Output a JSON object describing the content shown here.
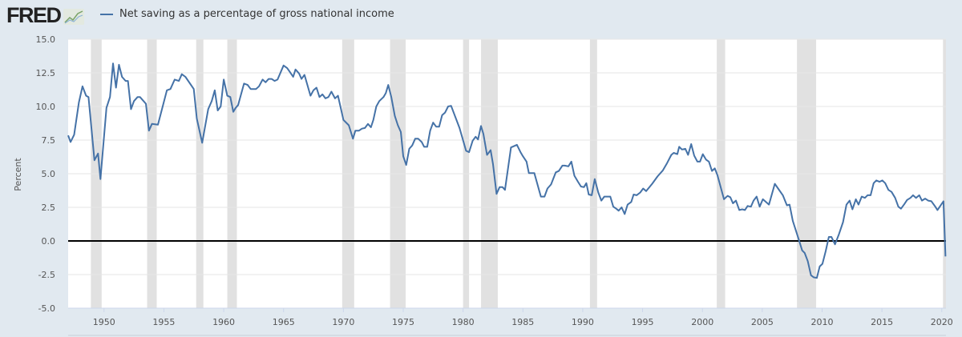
{
  "logo": {
    "text": "FRED"
  },
  "legend": {
    "label": "Net saving as a percentage of gross national income",
    "color": "#4572a7"
  },
  "chart_data": {
    "type": "line",
    "title": "Net saving as a percentage of gross national income",
    "xlabel": "",
    "ylabel": "Percent",
    "xlim": [
      1947,
      2020.35
    ],
    "ylim": [
      -5,
      15
    ],
    "grid": true,
    "legend_position": "top-left",
    "yticks": [
      "-5.0",
      "-2.5",
      "0.0",
      "2.5",
      "5.0",
      "7.5",
      "10.0",
      "12.5",
      "15.0"
    ],
    "xticks": [
      "1950",
      "1955",
      "1960",
      "1965",
      "1970",
      "1975",
      "1980",
      "1985",
      "1990",
      "1995",
      "2000",
      "2005",
      "2010",
      "2015",
      "2020"
    ],
    "recessions": [
      [
        1948.9,
        1949.8
      ],
      [
        1953.6,
        1954.4
      ],
      [
        1957.7,
        1958.3
      ],
      [
        1960.3,
        1961.1
      ],
      [
        1969.9,
        1970.9
      ],
      [
        1973.9,
        1975.2
      ],
      [
        1980.0,
        1980.5
      ],
      [
        1981.5,
        1982.9
      ],
      [
        1990.6,
        1991.2
      ],
      [
        2001.2,
        2001.9
      ],
      [
        2007.9,
        2009.5
      ],
      [
        2020.1,
        2020.35
      ]
    ],
    "series": [
      {
        "name": "Net saving as a percentage of gross national income",
        "points": [
          [
            1947.0,
            7.85
          ],
          [
            1947.2,
            7.36
          ],
          [
            1947.5,
            7.9
          ],
          [
            1947.9,
            10.3
          ],
          [
            1948.2,
            11.5
          ],
          [
            1948.5,
            10.8
          ],
          [
            1948.7,
            10.7
          ],
          [
            1949.2,
            6.0
          ],
          [
            1949.5,
            6.5
          ],
          [
            1949.7,
            4.6
          ],
          [
            1950.2,
            9.9
          ],
          [
            1950.5,
            10.7
          ],
          [
            1950.75,
            13.2
          ],
          [
            1951.0,
            11.4
          ],
          [
            1951.25,
            13.1
          ],
          [
            1951.5,
            12.2
          ],
          [
            1951.8,
            11.9
          ],
          [
            1952.0,
            11.9
          ],
          [
            1952.25,
            9.8
          ],
          [
            1952.5,
            10.4
          ],
          [
            1952.8,
            10.7
          ],
          [
            1953.0,
            10.7
          ],
          [
            1953.5,
            10.2
          ],
          [
            1953.75,
            8.2
          ],
          [
            1954.0,
            8.7
          ],
          [
            1954.5,
            8.65
          ],
          [
            1955.25,
            11.2
          ],
          [
            1955.55,
            11.3
          ],
          [
            1955.9,
            12.0
          ],
          [
            1956.25,
            11.9
          ],
          [
            1956.5,
            12.4
          ],
          [
            1956.8,
            12.2
          ],
          [
            1957.5,
            11.3
          ],
          [
            1957.75,
            9.1
          ],
          [
            1958.2,
            7.3
          ],
          [
            1958.7,
            9.8
          ],
          [
            1959.0,
            10.4
          ],
          [
            1959.25,
            11.2
          ],
          [
            1959.5,
            9.7
          ],
          [
            1959.75,
            10.0
          ],
          [
            1960.0,
            12.0
          ],
          [
            1960.3,
            10.8
          ],
          [
            1960.55,
            10.7
          ],
          [
            1960.8,
            9.6
          ],
          [
            1961.0,
            9.9
          ],
          [
            1961.2,
            10.1
          ],
          [
            1961.7,
            11.7
          ],
          [
            1962.0,
            11.6
          ],
          [
            1962.25,
            11.3
          ],
          [
            1962.45,
            11.3
          ],
          [
            1962.7,
            11.3
          ],
          [
            1962.95,
            11.5
          ],
          [
            1963.25,
            12.0
          ],
          [
            1963.5,
            11.8
          ],
          [
            1963.75,
            12.05
          ],
          [
            1964.0,
            12.05
          ],
          [
            1964.25,
            11.9
          ],
          [
            1964.5,
            12.0
          ],
          [
            1965.0,
            13.05
          ],
          [
            1965.3,
            12.85
          ],
          [
            1965.5,
            12.6
          ],
          [
            1965.8,
            12.2
          ],
          [
            1966.0,
            12.75
          ],
          [
            1966.3,
            12.45
          ],
          [
            1966.5,
            12.05
          ],
          [
            1966.75,
            12.35
          ],
          [
            1967.25,
            10.8
          ],
          [
            1967.5,
            11.2
          ],
          [
            1967.75,
            11.4
          ],
          [
            1968.0,
            10.7
          ],
          [
            1968.25,
            10.9
          ],
          [
            1968.5,
            10.6
          ],
          [
            1968.75,
            10.7
          ],
          [
            1969.0,
            11.1
          ],
          [
            1969.3,
            10.6
          ],
          [
            1969.55,
            10.8
          ],
          [
            1970.0,
            9.0
          ],
          [
            1970.45,
            8.6
          ],
          [
            1970.8,
            7.6
          ],
          [
            1971.0,
            8.2
          ],
          [
            1971.3,
            8.2
          ],
          [
            1971.55,
            8.35
          ],
          [
            1971.8,
            8.4
          ],
          [
            1972.05,
            8.7
          ],
          [
            1972.3,
            8.45
          ],
          [
            1972.5,
            9.0
          ],
          [
            1972.75,
            10.0
          ],
          [
            1973.0,
            10.4
          ],
          [
            1973.35,
            10.7
          ],
          [
            1973.55,
            11.0
          ],
          [
            1973.75,
            11.6
          ],
          [
            1974.0,
            10.7
          ],
          [
            1974.3,
            9.3
          ],
          [
            1974.55,
            8.6
          ],
          [
            1974.8,
            8.1
          ],
          [
            1975.0,
            6.3
          ],
          [
            1975.25,
            5.65
          ],
          [
            1975.5,
            6.85
          ],
          [
            1975.75,
            7.1
          ],
          [
            1976.0,
            7.6
          ],
          [
            1976.25,
            7.6
          ],
          [
            1976.55,
            7.35
          ],
          [
            1976.75,
            7.0
          ],
          [
            1977.0,
            7.0
          ],
          [
            1977.25,
            8.2
          ],
          [
            1977.5,
            8.8
          ],
          [
            1977.75,
            8.5
          ],
          [
            1978.0,
            8.5
          ],
          [
            1978.25,
            9.35
          ],
          [
            1978.5,
            9.55
          ],
          [
            1978.75,
            10.0
          ],
          [
            1979.0,
            10.05
          ],
          [
            1979.7,
            8.4
          ],
          [
            1980.25,
            6.7
          ],
          [
            1980.5,
            6.6
          ],
          [
            1980.8,
            7.45
          ],
          [
            1981.05,
            7.75
          ],
          [
            1981.25,
            7.55
          ],
          [
            1981.5,
            8.55
          ],
          [
            1981.7,
            7.95
          ],
          [
            1982.0,
            6.4
          ],
          [
            1982.3,
            6.75
          ],
          [
            1982.5,
            5.7
          ],
          [
            1982.8,
            3.5
          ],
          [
            1983.05,
            4.0
          ],
          [
            1983.3,
            4.0
          ],
          [
            1983.5,
            3.8
          ],
          [
            1984.0,
            6.95
          ],
          [
            1984.5,
            7.15
          ],
          [
            1984.8,
            6.6
          ],
          [
            1985.0,
            6.3
          ],
          [
            1985.3,
            5.9
          ],
          [
            1985.5,
            5.05
          ],
          [
            1985.95,
            5.05
          ],
          [
            1986.5,
            3.3
          ],
          [
            1986.8,
            3.3
          ],
          [
            1987.05,
            3.9
          ],
          [
            1987.35,
            4.2
          ],
          [
            1987.75,
            5.1
          ],
          [
            1988.0,
            5.2
          ],
          [
            1988.3,
            5.6
          ],
          [
            1988.5,
            5.6
          ],
          [
            1988.8,
            5.55
          ],
          [
            1989.05,
            5.9
          ],
          [
            1989.3,
            4.85
          ],
          [
            1989.6,
            4.4
          ],
          [
            1989.85,
            4.05
          ],
          [
            1990.1,
            4.0
          ],
          [
            1990.3,
            4.3
          ],
          [
            1990.5,
            3.45
          ],
          [
            1990.75,
            3.4
          ],
          [
            1991.0,
            4.6
          ],
          [
            1991.3,
            3.6
          ],
          [
            1991.55,
            3.0
          ],
          [
            1991.8,
            3.3
          ],
          [
            1992.05,
            3.3
          ],
          [
            1992.3,
            3.3
          ],
          [
            1992.55,
            2.55
          ],
          [
            1992.8,
            2.4
          ],
          [
            1993.0,
            2.25
          ],
          [
            1993.25,
            2.5
          ],
          [
            1993.5,
            2.0
          ],
          [
            1993.75,
            2.7
          ],
          [
            1994.05,
            2.9
          ],
          [
            1994.25,
            3.45
          ],
          [
            1994.5,
            3.4
          ],
          [
            1994.8,
            3.6
          ],
          [
            1995.05,
            3.9
          ],
          [
            1995.3,
            3.7
          ],
          [
            1995.8,
            4.25
          ],
          [
            1996.25,
            4.8
          ],
          [
            1996.7,
            5.25
          ],
          [
            1997.05,
            5.8
          ],
          [
            1997.4,
            6.4
          ],
          [
            1997.6,
            6.55
          ],
          [
            1997.9,
            6.45
          ],
          [
            1998.06,
            7.0
          ],
          [
            1998.29,
            6.8
          ],
          [
            1998.57,
            6.85
          ],
          [
            1998.8,
            6.4
          ],
          [
            1999.06,
            7.2
          ],
          [
            1999.31,
            6.35
          ],
          [
            1999.58,
            5.9
          ],
          [
            1999.8,
            5.9
          ],
          [
            2000.03,
            6.45
          ],
          [
            2000.3,
            6.05
          ],
          [
            2000.54,
            5.9
          ],
          [
            2000.8,
            5.2
          ],
          [
            2001.03,
            5.4
          ],
          [
            2001.25,
            4.9
          ],
          [
            2001.8,
            3.1
          ],
          [
            2002.1,
            3.35
          ],
          [
            2002.33,
            3.25
          ],
          [
            2002.55,
            2.8
          ],
          [
            2002.8,
            3.0
          ],
          [
            2003.08,
            2.3
          ],
          [
            2003.33,
            2.35
          ],
          [
            2003.55,
            2.3
          ],
          [
            2003.78,
            2.6
          ],
          [
            2004.05,
            2.55
          ],
          [
            2004.27,
            3.0
          ],
          [
            2004.53,
            3.3
          ],
          [
            2004.78,
            2.55
          ],
          [
            2005.05,
            3.1
          ],
          [
            2005.56,
            2.7
          ],
          [
            2006.05,
            4.25
          ],
          [
            2006.32,
            3.9
          ],
          [
            2006.72,
            3.4
          ],
          [
            2007.06,
            2.65
          ],
          [
            2007.28,
            2.7
          ],
          [
            2007.55,
            1.5
          ],
          [
            2008.07,
            0.05
          ],
          [
            2008.33,
            -0.7
          ],
          [
            2008.55,
            -0.9
          ],
          [
            2008.8,
            -1.5
          ],
          [
            2009.07,
            -2.55
          ],
          [
            2009.29,
            -2.7
          ],
          [
            2009.56,
            -2.75
          ],
          [
            2009.8,
            -1.9
          ],
          [
            2010.03,
            -1.7
          ],
          [
            2010.3,
            -0.75
          ],
          [
            2010.56,
            0.3
          ],
          [
            2010.78,
            0.3
          ],
          [
            2011.08,
            -0.25
          ],
          [
            2011.41,
            0.5
          ],
          [
            2011.75,
            1.4
          ],
          [
            2012.04,
            2.7
          ],
          [
            2012.3,
            3.0
          ],
          [
            2012.53,
            2.35
          ],
          [
            2012.82,
            3.1
          ],
          [
            2013.04,
            2.7
          ],
          [
            2013.31,
            3.3
          ],
          [
            2013.58,
            3.2
          ],
          [
            2013.8,
            3.4
          ],
          [
            2014.05,
            3.4
          ],
          [
            2014.31,
            4.3
          ],
          [
            2014.53,
            4.5
          ],
          [
            2014.8,
            4.4
          ],
          [
            2015.03,
            4.5
          ],
          [
            2015.27,
            4.3
          ],
          [
            2015.54,
            3.8
          ],
          [
            2015.8,
            3.65
          ],
          [
            2016.1,
            3.2
          ],
          [
            2016.37,
            2.55
          ],
          [
            2016.59,
            2.4
          ],
          [
            2016.88,
            2.75
          ],
          [
            2017.1,
            3.05
          ],
          [
            2017.38,
            3.2
          ],
          [
            2017.6,
            3.4
          ],
          [
            2017.85,
            3.2
          ],
          [
            2018.12,
            3.4
          ],
          [
            2018.34,
            3.0
          ],
          [
            2018.61,
            3.15
          ],
          [
            2018.86,
            3.0
          ],
          [
            2019.13,
            2.95
          ],
          [
            2019.46,
            2.55
          ],
          [
            2019.64,
            2.3
          ],
          [
            2020.14,
            2.95
          ],
          [
            2020.31,
            -1.15
          ]
        ]
      }
    ],
    "colors": {
      "line": "#4572a7",
      "recession": "#e1e1e1",
      "zero_line": "#000000",
      "grid": "#e6e6e6"
    }
  }
}
